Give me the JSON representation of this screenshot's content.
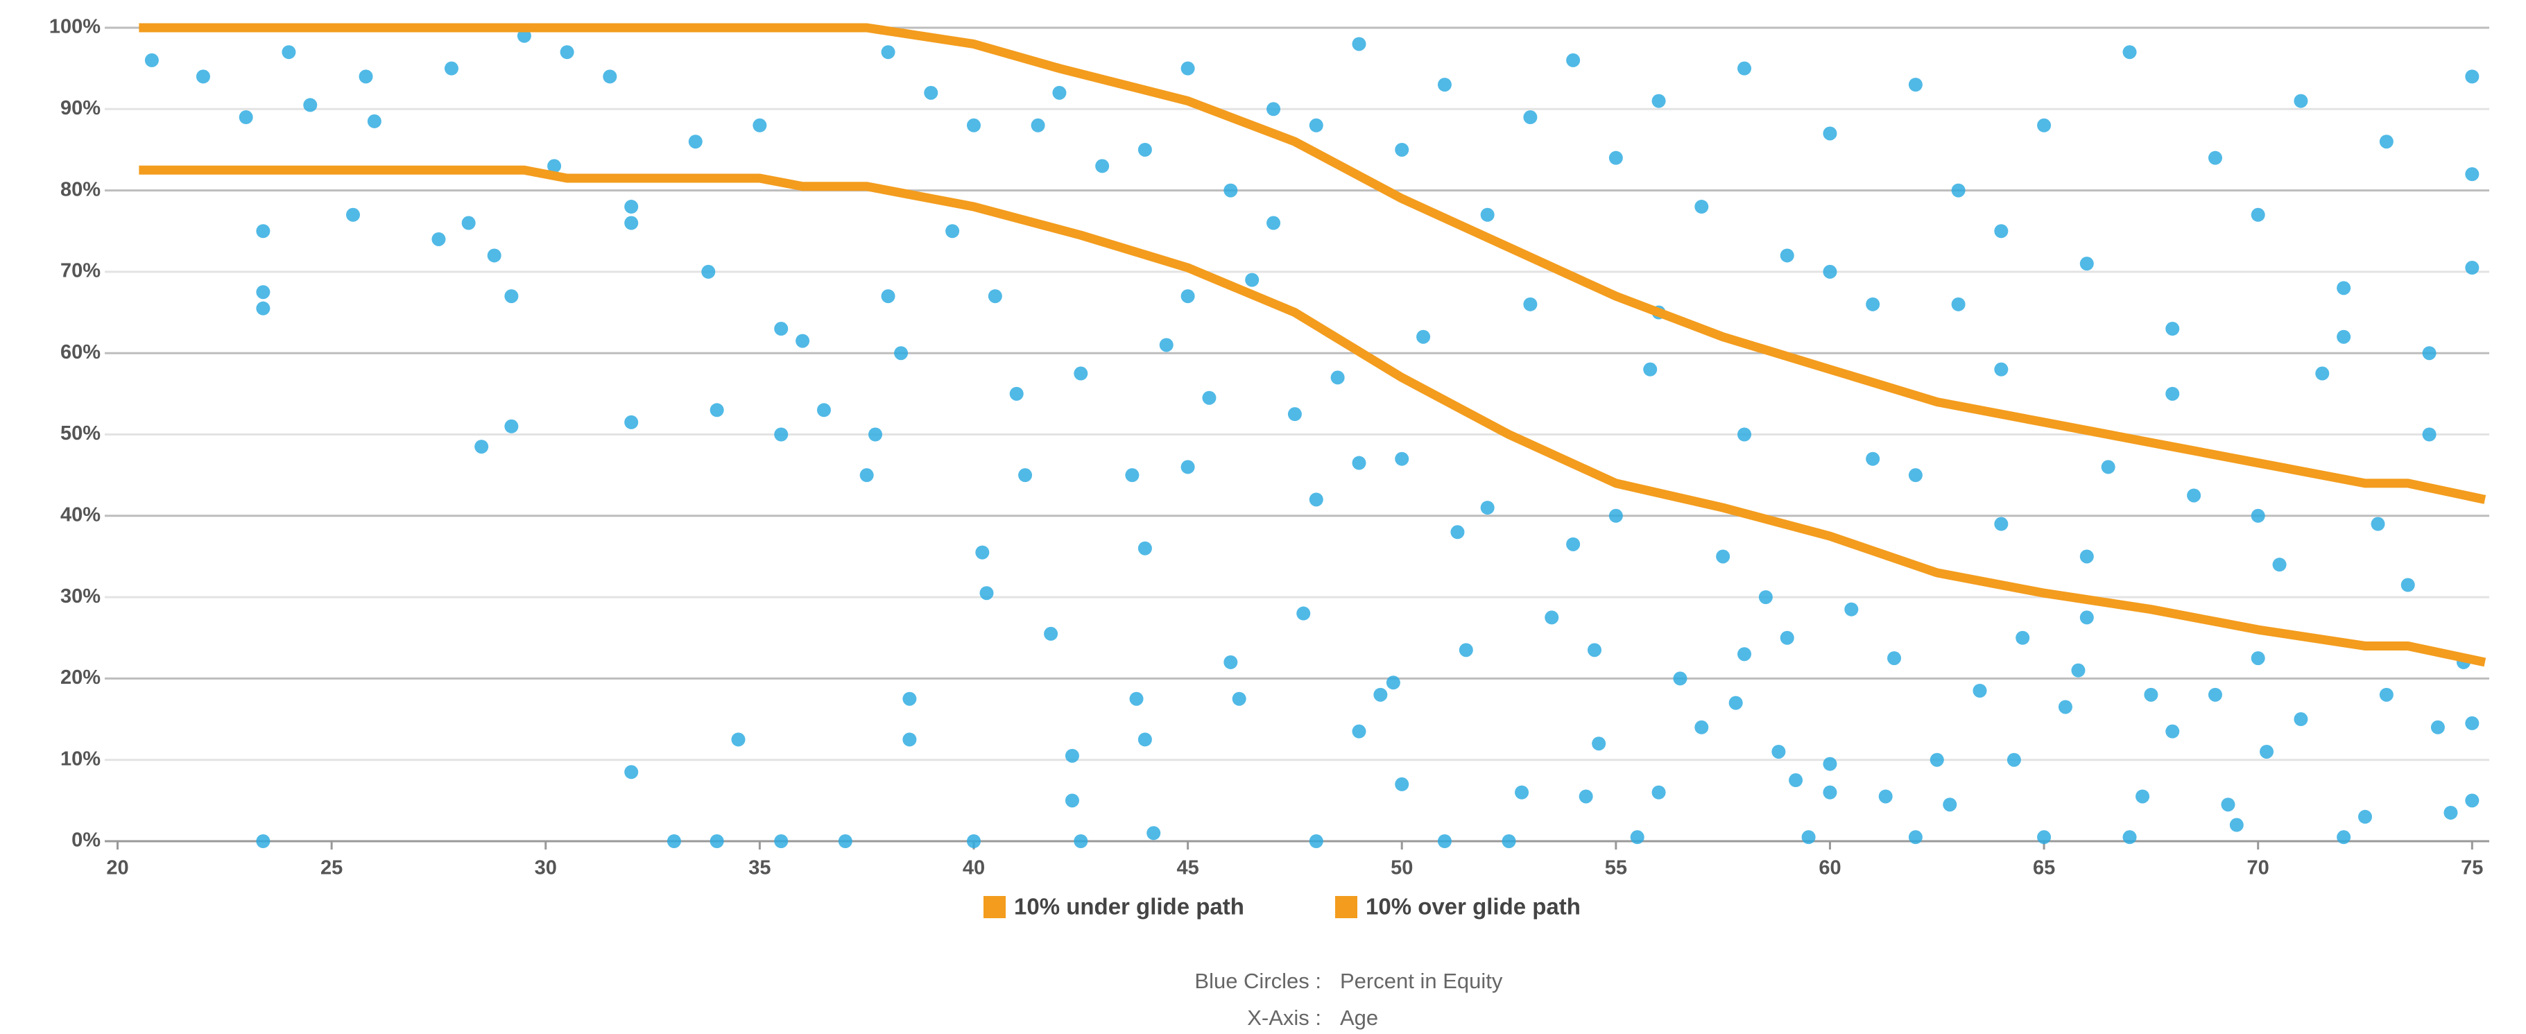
{
  "chart_data": {
    "type": "scatter",
    "xlim": [
      19.7,
      75.4
    ],
    "ylim": [
      0,
      100
    ],
    "xticks": [
      20,
      25,
      30,
      35,
      40,
      45,
      50,
      55,
      60,
      65,
      70,
      75
    ],
    "yticks": [
      {
        "value": 0,
        "label": "0%"
      },
      {
        "value": 10,
        "label": "10%"
      },
      {
        "value": 20,
        "label": "20%"
      },
      {
        "value": 30,
        "label": "30%"
      },
      {
        "value": 40,
        "label": "40%"
      },
      {
        "value": 50,
        "label": "50%"
      },
      {
        "value": 60,
        "label": "60%"
      },
      {
        "value": 70,
        "label": "70%"
      },
      {
        "value": 80,
        "label": "80%"
      },
      {
        "value": 90,
        "label": "90%"
      },
      {
        "value": 100,
        "label": "100%"
      }
    ],
    "grid": true,
    "points": {
      "color": "#29aae1",
      "x": [
        20.8,
        22,
        23,
        23.4,
        23.4,
        23.4,
        23.4,
        24,
        24.5,
        25.5,
        25.8,
        26,
        27.5,
        27.8,
        28.2,
        28.5,
        28.8,
        29.2,
        29.2,
        29.5,
        30.2,
        30.5,
        31.5,
        32,
        32,
        32,
        32,
        33,
        33.5,
        33.8,
        34,
        34,
        34.5,
        35,
        35.5,
        35.5,
        35.5,
        36,
        36.5,
        37,
        37.5,
        37.7,
        38,
        38.5,
        38.5,
        38.3,
        39,
        39.5,
        40,
        40.2,
        40.3,
        40.5,
        41,
        41.2,
        41.5,
        41.8,
        42.3,
        42.3,
        42.5,
        42.5,
        43,
        43.7,
        43.8,
        44,
        44,
        44.2,
        44.5,
        45,
        45,
        45.5,
        46,
        46.2,
        46.5,
        47,
        47.5,
        47.7,
        48,
        48,
        48.5,
        49,
        49,
        49.5,
        49.8,
        50,
        50,
        50.5,
        51,
        51.3,
        51.5,
        52,
        52.5,
        52.8,
        53,
        53.5,
        54,
        54.3,
        54.5,
        54.6,
        55,
        55.5,
        55.8,
        56,
        56.5,
        57,
        57.5,
        57.8,
        58,
        58.5,
        58.8,
        59,
        59.2,
        59.5,
        60,
        60,
        60.5,
        61,
        61.3,
        61.5,
        62,
        62.5,
        62.8,
        63,
        63.5,
        64,
        64.3,
        64.5,
        65,
        65.5,
        65.8,
        66,
        66.5,
        67,
        67.3,
        67.5,
        68,
        68.5,
        69,
        69.3,
        69.5,
        70,
        70.2,
        70.5,
        71,
        71.5,
        72,
        72.5,
        72.8,
        73,
        73.5,
        74,
        74.2,
        74.5,
        74.8,
        75,
        75,
        75,
        75,
        38,
        40,
        42,
        44,
        45,
        46,
        47,
        48,
        49,
        50,
        51,
        52,
        53,
        54,
        55,
        56,
        57,
        58,
        59,
        60,
        61,
        62,
        63,
        64,
        65,
        66,
        67,
        68,
        69,
        70,
        71,
        72,
        73,
        74,
        75,
        56,
        60,
        64,
        68,
        72,
        58,
        62,
        66,
        70
      ],
      "y": [
        96,
        94,
        89,
        75,
        67.5,
        65.5,
        0,
        97,
        90.5,
        77,
        94,
        88.5,
        74,
        95,
        76,
        48.5,
        72,
        67,
        51,
        99,
        83,
        97,
        94,
        78,
        76,
        51.5,
        8.5,
        0,
        86,
        70,
        53,
        0,
        12.5,
        88,
        50,
        63,
        0,
        61.5,
        53,
        0,
        45,
        50,
        67,
        17.5,
        12.5,
        60,
        92,
        75,
        0,
        35.5,
        30.5,
        67,
        55,
        45,
        88,
        25.5,
        10.5,
        5,
        57.5,
        0,
        83,
        45,
        17.5,
        36,
        12.5,
        1,
        61,
        46,
        67,
        54.5,
        22,
        17.5,
        69,
        76,
        52.5,
        28,
        42,
        0,
        57,
        46.5,
        13.5,
        18,
        19.5,
        7,
        47,
        62,
        0,
        38,
        23.5,
        41,
        0,
        6,
        66,
        27.5,
        36.5,
        5.5,
        23.5,
        12,
        40,
        0.5,
        58,
        6,
        20,
        14,
        35,
        17,
        23,
        30,
        11,
        25,
        7.5,
        0.5,
        9.5,
        6,
        28.5,
        47,
        5.5,
        22.5,
        0.5,
        10,
        4.5,
        66,
        18.5,
        39,
        10,
        25,
        0.5,
        16.5,
        21,
        27.5,
        46,
        0.5,
        5.5,
        18,
        13.5,
        42.5,
        18,
        4.5,
        2,
        22.5,
        11,
        34,
        15,
        57.5,
        0.5,
        3,
        39,
        18,
        31.5,
        50,
        14,
        3.5,
        22,
        5,
        14.5,
        70.5,
        94,
        97,
        88,
        92,
        85,
        95,
        80,
        90,
        88,
        98,
        85,
        93,
        77,
        89,
        96,
        84,
        91,
        78,
        95,
        72,
        87,
        66,
        93,
        80,
        58,
        88,
        71,
        97,
        63,
        84,
        77,
        91,
        68,
        86,
        60,
        82,
        65,
        70,
        75,
        55,
        62,
        50,
        45,
        35,
        40
      ]
    },
    "series": [
      {
        "name": "10% under glide path",
        "color": "#f39c1d",
        "x": [
          20.5,
          29.5,
          30.5,
          35,
          36,
          37.5,
          40,
          42.5,
          45,
          47.5,
          50,
          52.5,
          55,
          57.5,
          60,
          62.5,
          65,
          67.5,
          70,
          72.5,
          73.5,
          75.3
        ],
        "values": [
          82.5,
          82.5,
          81.5,
          81.5,
          80.5,
          80.5,
          78,
          74.5,
          70.5,
          65,
          57,
          50,
          44,
          41,
          37.5,
          33,
          30.5,
          28.5,
          26,
          24,
          24,
          22
        ]
      },
      {
        "name": "10% over glide path",
        "color": "#f39c1d",
        "x": [
          20.5,
          37.5,
          40,
          42,
          45,
          47.5,
          50,
          52.5,
          55,
          57.5,
          60,
          62.5,
          65,
          67.5,
          70,
          72.5,
          73.5,
          75.3
        ],
        "values": [
          100,
          100,
          98,
          95,
          91,
          86,
          79,
          73,
          67,
          62,
          58,
          54,
          51.5,
          49,
          46.5,
          44,
          44,
          42
        ]
      }
    ]
  },
  "footer": [
    {
      "label": "Blue Circles :",
      "value": "Percent in Equity"
    },
    {
      "label": "X-Axis :",
      "value": "Age"
    }
  ]
}
